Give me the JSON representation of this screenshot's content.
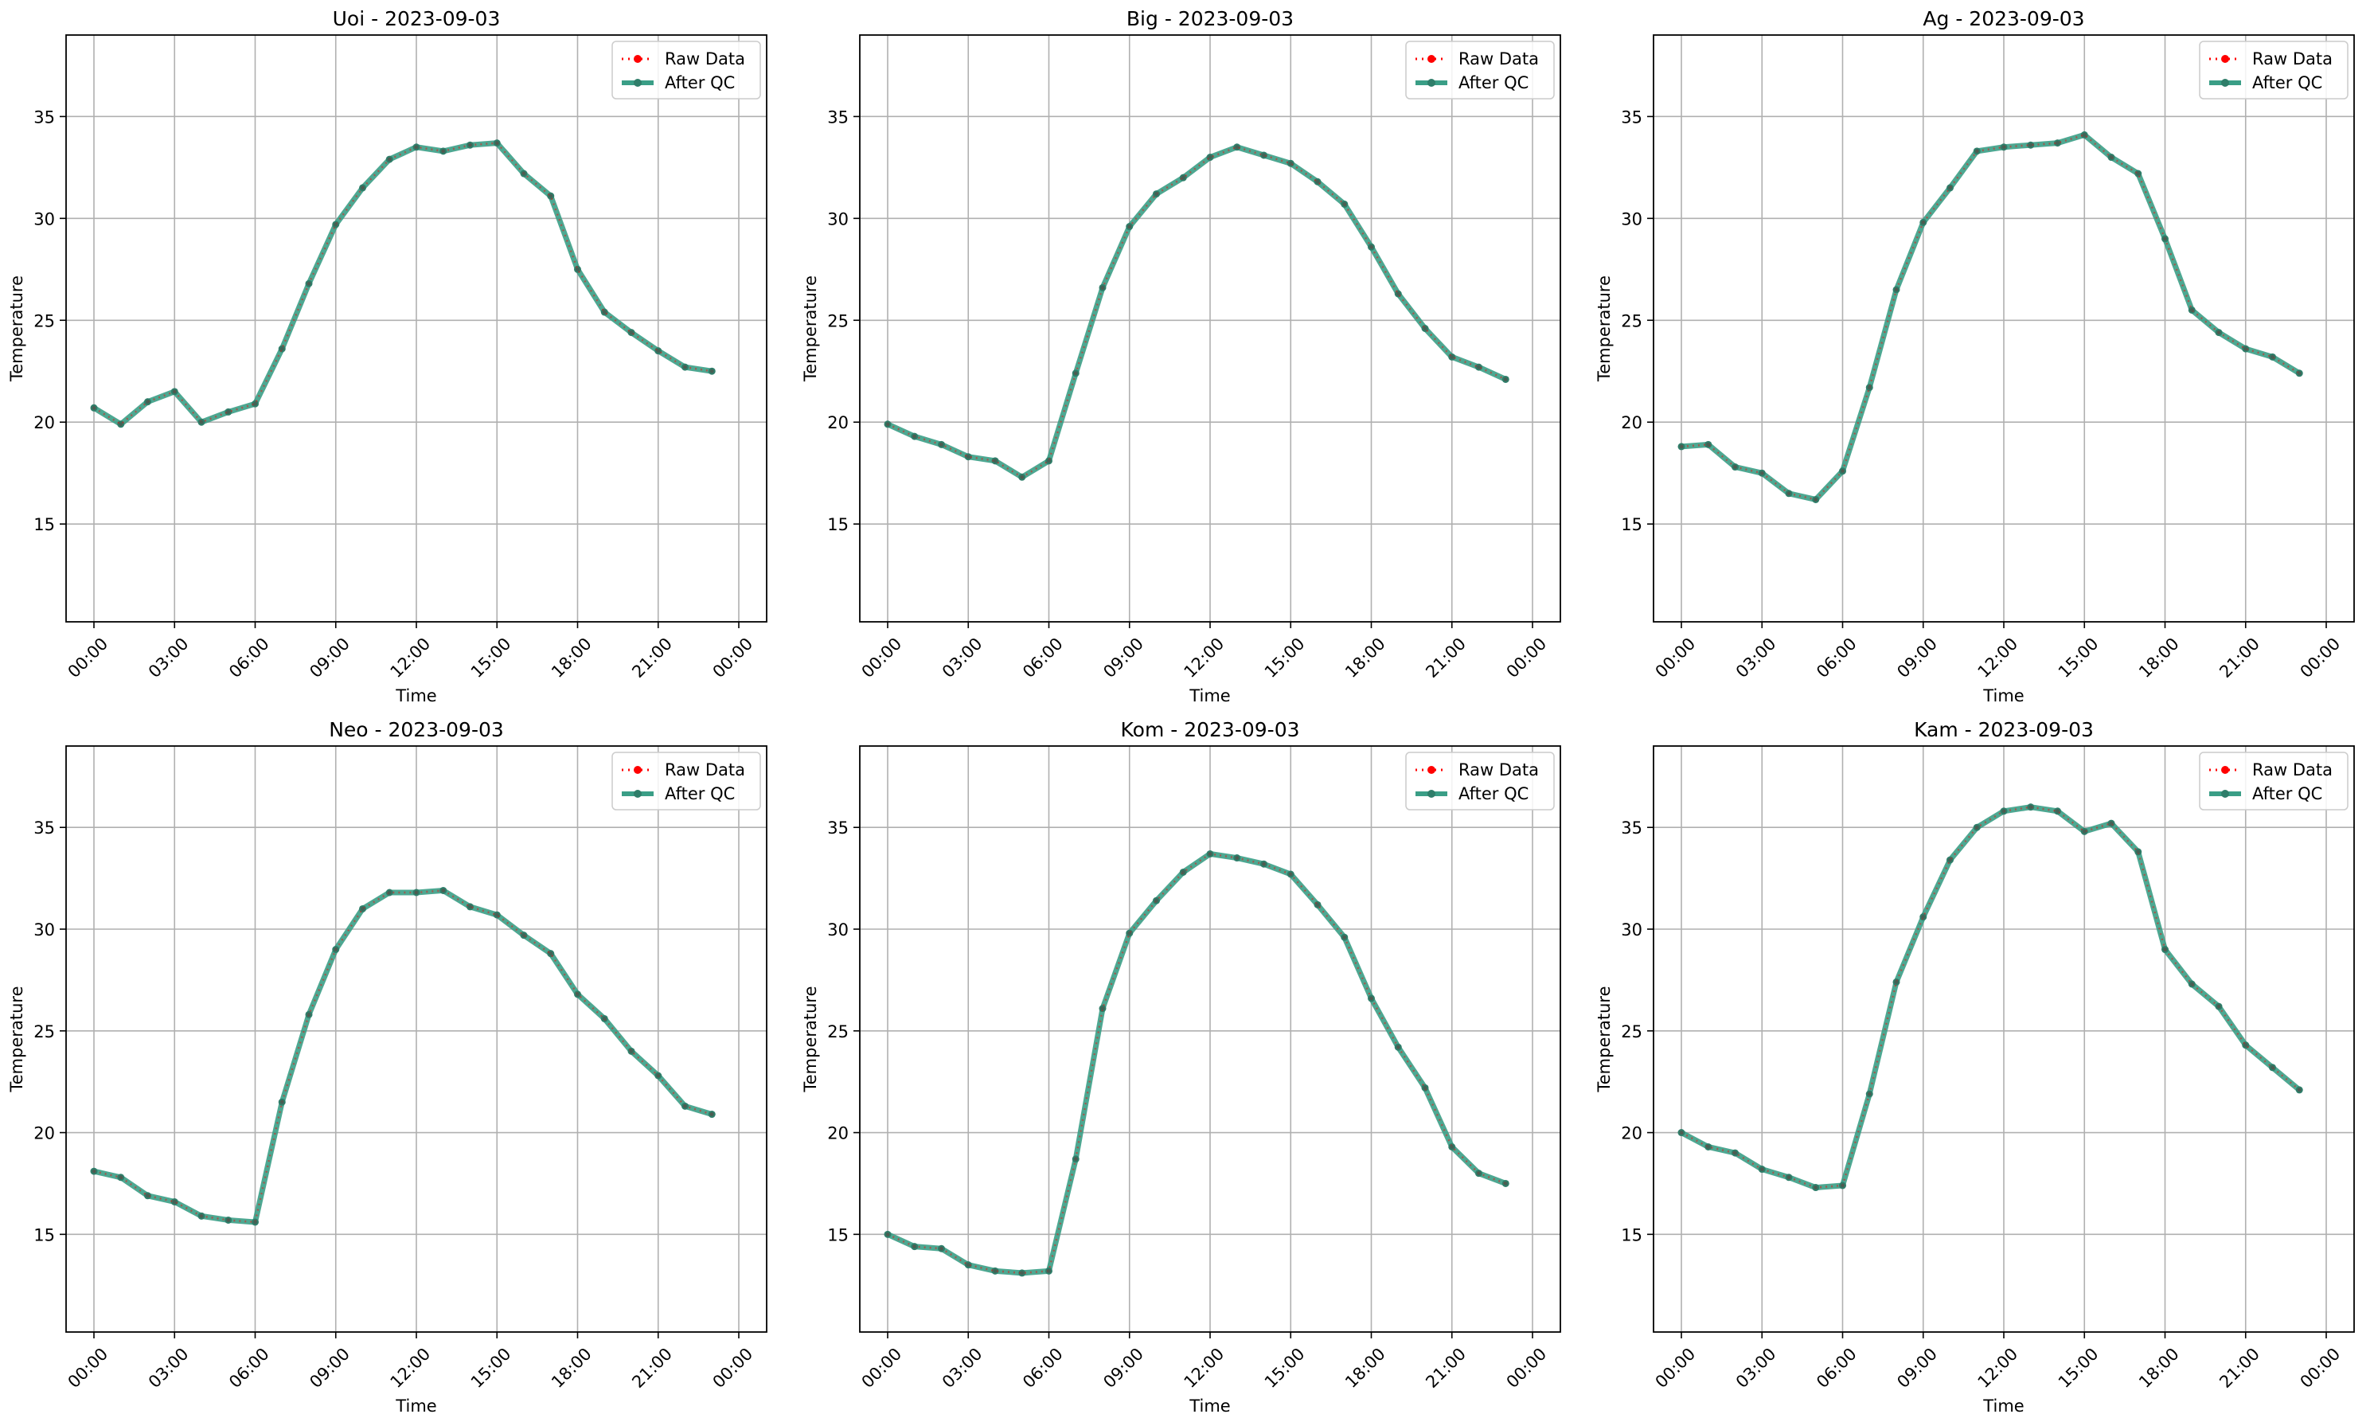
{
  "colors": {
    "raw": "#ff0000",
    "qc": "#2ca02c",
    "qc_line": "#3a9e86",
    "grid": "#b0b0b0",
    "axes": "#000000",
    "legend_border": "#cccccc"
  },
  "legend": {
    "raw_label": "Raw Data",
    "qc_label": "After QC",
    "placement": "top-right"
  },
  "chart_data": [
    {
      "type": "line",
      "title": "Uoi - 2023-09-03",
      "xlabel": "Time",
      "ylabel": "Temperature",
      "x": [
        "00:00",
        "01:00",
        "02:00",
        "03:00",
        "04:00",
        "05:00",
        "06:00",
        "07:00",
        "08:00",
        "09:00",
        "10:00",
        "11:00",
        "12:00",
        "13:00",
        "14:00",
        "15:00",
        "16:00",
        "17:00",
        "18:00",
        "19:00",
        "20:00",
        "21:00",
        "22:00",
        "23:00"
      ],
      "xticks": [
        "00:00",
        "03:00",
        "06:00",
        "09:00",
        "12:00",
        "15:00",
        "18:00",
        "21:00",
        "00:00"
      ],
      "yticks": [
        15,
        20,
        25,
        30,
        35
      ],
      "ylim": [
        10.2,
        39.0
      ],
      "grid": true,
      "series": [
        {
          "name": "Raw Data",
          "values": [
            20.7,
            19.9,
            21.0,
            21.5,
            20.0,
            20.5,
            20.9,
            23.6,
            26.8,
            29.7,
            31.5,
            32.9,
            33.5,
            33.3,
            33.6,
            33.7,
            32.2,
            31.1,
            27.5,
            25.4,
            24.4,
            23.5,
            22.7,
            22.5
          ]
        },
        {
          "name": "After QC",
          "values": [
            20.7,
            19.9,
            21.0,
            21.5,
            20.0,
            20.5,
            20.9,
            23.6,
            26.8,
            29.7,
            31.5,
            32.9,
            33.5,
            33.3,
            33.6,
            33.7,
            32.2,
            31.1,
            27.5,
            25.4,
            24.4,
            23.5,
            22.7,
            22.5
          ]
        }
      ]
    },
    {
      "type": "line",
      "title": "Big - 2023-09-03",
      "xlabel": "Time",
      "ylabel": "Temperature",
      "x": [
        "00:00",
        "01:00",
        "02:00",
        "03:00",
        "04:00",
        "05:00",
        "06:00",
        "07:00",
        "08:00",
        "09:00",
        "10:00",
        "11:00",
        "12:00",
        "13:00",
        "14:00",
        "15:00",
        "16:00",
        "17:00",
        "18:00",
        "19:00",
        "20:00",
        "21:00",
        "22:00",
        "23:00"
      ],
      "xticks": [
        "00:00",
        "03:00",
        "06:00",
        "09:00",
        "12:00",
        "15:00",
        "18:00",
        "21:00",
        "00:00"
      ],
      "yticks": [
        15,
        20,
        25,
        30,
        35
      ],
      "ylim": [
        10.2,
        39.0
      ],
      "grid": true,
      "series": [
        {
          "name": "Raw Data",
          "values": [
            19.9,
            19.3,
            18.9,
            18.3,
            18.1,
            17.3,
            18.1,
            22.4,
            26.6,
            29.6,
            31.2,
            32.0,
            33.0,
            33.5,
            33.1,
            32.7,
            31.8,
            30.7,
            28.6,
            26.3,
            24.6,
            23.2,
            22.7,
            22.1
          ]
        },
        {
          "name": "After QC",
          "values": [
            19.9,
            19.3,
            18.9,
            18.3,
            18.1,
            17.3,
            18.1,
            22.4,
            26.6,
            29.6,
            31.2,
            32.0,
            33.0,
            33.5,
            33.1,
            32.7,
            31.8,
            30.7,
            28.6,
            26.3,
            24.6,
            23.2,
            22.7,
            22.1
          ]
        }
      ]
    },
    {
      "type": "line",
      "title": "Ag - 2023-09-03",
      "xlabel": "Time",
      "ylabel": "Temperature",
      "x": [
        "00:00",
        "01:00",
        "02:00",
        "03:00",
        "04:00",
        "05:00",
        "06:00",
        "07:00",
        "08:00",
        "09:00",
        "10:00",
        "11:00",
        "12:00",
        "13:00",
        "14:00",
        "15:00",
        "16:00",
        "17:00",
        "18:00",
        "19:00",
        "20:00",
        "21:00",
        "22:00",
        "23:00"
      ],
      "xticks": [
        "00:00",
        "03:00",
        "06:00",
        "09:00",
        "12:00",
        "15:00",
        "18:00",
        "21:00",
        "00:00"
      ],
      "yticks": [
        15,
        20,
        25,
        30,
        35
      ],
      "ylim": [
        10.2,
        39.0
      ],
      "grid": true,
      "series": [
        {
          "name": "Raw Data",
          "values": [
            18.8,
            18.9,
            17.8,
            17.5,
            16.5,
            16.2,
            17.6,
            21.7,
            26.5,
            29.8,
            31.5,
            33.3,
            33.5,
            33.6,
            33.7,
            34.1,
            33.0,
            32.2,
            29.0,
            25.5,
            24.4,
            23.6,
            23.2,
            22.4
          ]
        },
        {
          "name": "After QC",
          "values": [
            18.8,
            18.9,
            17.8,
            17.5,
            16.5,
            16.2,
            17.6,
            21.7,
            26.5,
            29.8,
            31.5,
            33.3,
            33.5,
            33.6,
            33.7,
            34.1,
            33.0,
            32.2,
            29.0,
            25.5,
            24.4,
            23.6,
            23.2,
            22.4
          ]
        }
      ]
    },
    {
      "type": "line",
      "title": "Neo - 2023-09-03",
      "xlabel": "Time",
      "ylabel": "Temperature",
      "x": [
        "00:00",
        "01:00",
        "02:00",
        "03:00",
        "04:00",
        "05:00",
        "06:00",
        "07:00",
        "08:00",
        "09:00",
        "10:00",
        "11:00",
        "12:00",
        "13:00",
        "14:00",
        "15:00",
        "16:00",
        "17:00",
        "18:00",
        "19:00",
        "20:00",
        "21:00",
        "22:00",
        "23:00"
      ],
      "xticks": [
        "00:00",
        "03:00",
        "06:00",
        "09:00",
        "12:00",
        "15:00",
        "18:00",
        "21:00",
        "00:00"
      ],
      "yticks": [
        15,
        20,
        25,
        30,
        35
      ],
      "ylim": [
        10.2,
        39.0
      ],
      "grid": true,
      "series": [
        {
          "name": "Raw Data",
          "values": [
            18.1,
            17.8,
            16.9,
            16.6,
            15.9,
            15.7,
            15.6,
            21.5,
            25.8,
            29.0,
            31.0,
            31.8,
            31.8,
            31.9,
            31.1,
            30.7,
            29.7,
            28.8,
            26.8,
            25.6,
            24.0,
            22.8,
            21.3,
            20.9
          ]
        },
        {
          "name": "After QC",
          "values": [
            18.1,
            17.8,
            16.9,
            16.6,
            15.9,
            15.7,
            15.6,
            21.5,
            25.8,
            29.0,
            31.0,
            31.8,
            31.8,
            31.9,
            31.1,
            30.7,
            29.7,
            28.8,
            26.8,
            25.6,
            24.0,
            22.8,
            21.3,
            20.9
          ]
        }
      ]
    },
    {
      "type": "line",
      "title": "Kom - 2023-09-03",
      "xlabel": "Time",
      "ylabel": "Temperature",
      "x": [
        "00:00",
        "01:00",
        "02:00",
        "03:00",
        "04:00",
        "05:00",
        "06:00",
        "07:00",
        "08:00",
        "09:00",
        "10:00",
        "11:00",
        "12:00",
        "13:00",
        "14:00",
        "15:00",
        "16:00",
        "17:00",
        "18:00",
        "19:00",
        "20:00",
        "21:00",
        "22:00",
        "23:00"
      ],
      "xticks": [
        "00:00",
        "03:00",
        "06:00",
        "09:00",
        "12:00",
        "15:00",
        "18:00",
        "21:00",
        "00:00"
      ],
      "yticks": [
        15,
        20,
        25,
        30,
        35
      ],
      "ylim": [
        10.2,
        39.0
      ],
      "grid": true,
      "series": [
        {
          "name": "Raw Data",
          "values": [
            15.0,
            14.4,
            14.3,
            13.5,
            13.2,
            13.1,
            13.2,
            18.7,
            26.1,
            29.8,
            31.4,
            32.8,
            33.7,
            33.5,
            33.2,
            32.7,
            31.2,
            29.6,
            26.6,
            24.2,
            22.2,
            19.3,
            18.0,
            17.5
          ]
        },
        {
          "name": "After QC",
          "values": [
            15.0,
            14.4,
            14.3,
            13.5,
            13.2,
            13.1,
            13.2,
            18.7,
            26.1,
            29.8,
            31.4,
            32.8,
            33.7,
            33.5,
            33.2,
            32.7,
            31.2,
            29.6,
            26.6,
            24.2,
            22.2,
            19.3,
            18.0,
            17.5
          ]
        }
      ]
    },
    {
      "type": "line",
      "title": "Kam - 2023-09-03",
      "xlabel": "Time",
      "ylabel": "Temperature",
      "x": [
        "00:00",
        "01:00",
        "02:00",
        "03:00",
        "04:00",
        "05:00",
        "06:00",
        "07:00",
        "08:00",
        "09:00",
        "10:00",
        "11:00",
        "12:00",
        "13:00",
        "14:00",
        "15:00",
        "16:00",
        "17:00",
        "18:00",
        "19:00",
        "20:00",
        "21:00",
        "22:00",
        "23:00"
      ],
      "xticks": [
        "00:00",
        "03:00",
        "06:00",
        "09:00",
        "12:00",
        "15:00",
        "18:00",
        "21:00",
        "00:00"
      ],
      "yticks": [
        15,
        20,
        25,
        30,
        35
      ],
      "ylim": [
        10.2,
        39.0
      ],
      "grid": true,
      "series": [
        {
          "name": "Raw Data",
          "values": [
            20.0,
            19.3,
            19.0,
            18.2,
            17.8,
            17.3,
            17.4,
            21.9,
            27.4,
            30.6,
            33.4,
            35.0,
            35.8,
            36.0,
            35.8,
            34.8,
            35.2,
            33.8,
            29.0,
            27.3,
            26.2,
            24.3,
            23.2,
            22.1
          ]
        },
        {
          "name": "After QC",
          "values": [
            20.0,
            19.3,
            19.0,
            18.2,
            17.8,
            17.3,
            17.4,
            21.9,
            27.4,
            30.6,
            33.4,
            35.0,
            35.8,
            36.0,
            35.8,
            34.8,
            35.2,
            33.8,
            29.0,
            27.3,
            26.2,
            24.3,
            23.2,
            22.1
          ]
        }
      ]
    }
  ]
}
